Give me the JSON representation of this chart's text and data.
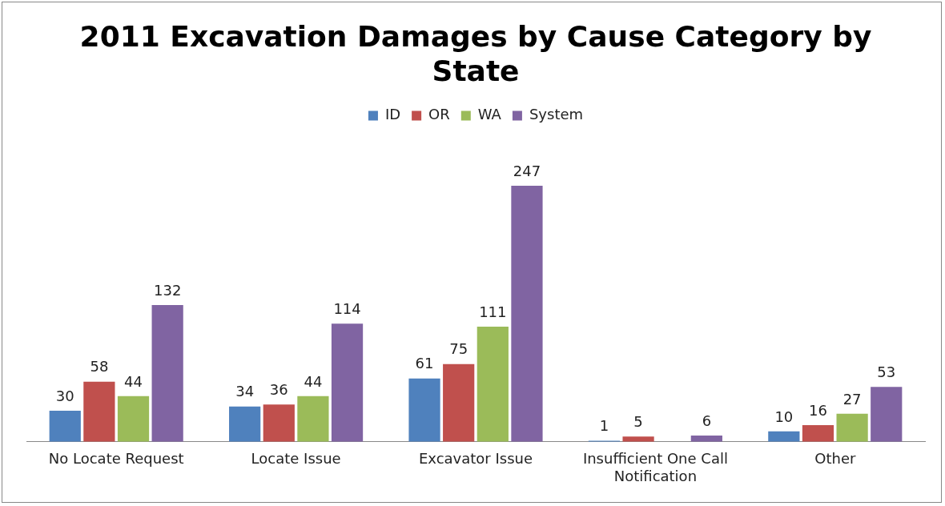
{
  "chart_data": {
    "type": "bar",
    "title": "2011 Excavation Damages by Cause Category by State",
    "categories": [
      "No Locate Request",
      "Locate Issue",
      "Excavator Issue",
      "Insufficient One Call Notification",
      "Other"
    ],
    "series": [
      {
        "name": "ID",
        "color": "#4f81bd",
        "values": [
          30,
          34,
          61,
          1,
          10
        ]
      },
      {
        "name": "OR",
        "color": "#c0504d",
        "values": [
          58,
          36,
          75,
          5,
          16
        ]
      },
      {
        "name": "WA",
        "color": "#9bbb59",
        "values": [
          44,
          44,
          111,
          null,
          27
        ]
      },
      {
        "name": "System",
        "color": "#8064a2",
        "values": [
          132,
          114,
          247,
          6,
          53
        ]
      }
    ],
    "data_labels": true,
    "legend": "top",
    "grid": false
  }
}
